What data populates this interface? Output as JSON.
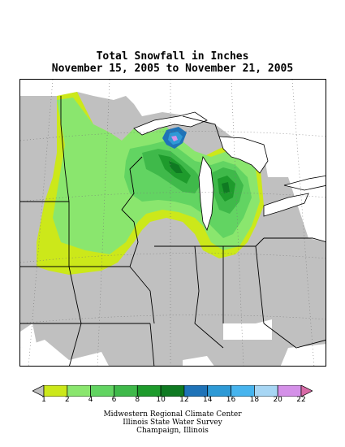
{
  "title": {
    "line1": "Total Snowfall in Inches",
    "line2": "November 15, 2005 to November 21, 2005"
  },
  "legend": {
    "colors": [
      "#c0c0c0",
      "#cce81a",
      "#8ae66e",
      "#62d462",
      "#3fb94a",
      "#1e9b2c",
      "#0f7a22",
      "#1f73b8",
      "#2e9ad6",
      "#47b4ee",
      "#a7d6f4",
      "#d490e8",
      "#d86aa6"
    ],
    "labels": [
      "1",
      "2",
      "4",
      "6",
      "8",
      "10",
      "12",
      "14",
      "16",
      "18",
      "20",
      "22"
    ]
  },
  "credits": {
    "line1": "Midwestern Regional Climate Center",
    "line2": "Illinois State Water Survey",
    "line3": "Champaign, Illinois"
  },
  "map_colors": {
    "none": "#ffffff",
    "water": "#ffffff",
    "trace": "#c0c0c0"
  }
}
